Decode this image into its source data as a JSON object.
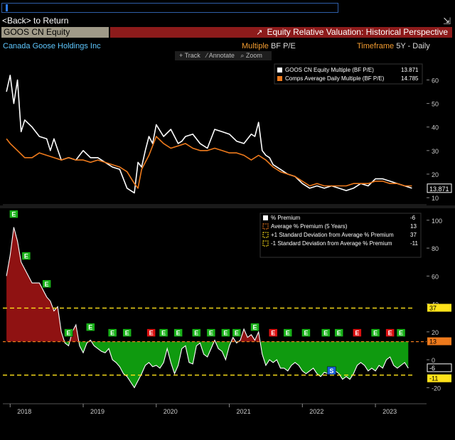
{
  "header": {
    "back_label": "<Back> to Return",
    "ticker": "GOOS CN Equity",
    "title": "Equity Relative Valuation: Historical Perspective",
    "company": "Canada Goose Holdings Inc",
    "multiple_label": "Multiple",
    "multiple_value": "BF P/E",
    "timeframe_label": "Timeframe",
    "timeframe_value": "5Y - Daily",
    "tools": [
      "+ Track",
      "⁄ Annotate",
      "⌕ Zoom"
    ]
  },
  "colors": {
    "equity": "#ffffff",
    "comps": "#ee7a1c",
    "premium_fill_pos": "#8f1212",
    "premium_fill_neg": "#0f9a0f",
    "avg": "#ee7a1c",
    "stdev": "#ffe21a",
    "title_bar": "#8d1b1b",
    "company": "#5fc8ff"
  },
  "chart_data": [
    {
      "type": "line",
      "title": "",
      "legend_position": "top-right",
      "x_unit": "year",
      "series": [
        {
          "name": "GOOS CN Equity Multiple (BF P/E)",
          "last": "13.871",
          "x": [
            2017.95,
            2018.0,
            2018.05,
            2018.1,
            2018.15,
            2018.2,
            2018.3,
            2018.4,
            2018.5,
            2018.55,
            2018.6,
            2018.7,
            2018.8,
            2018.9,
            2019.0,
            2019.1,
            2019.2,
            2019.3,
            2019.4,
            2019.5,
            2019.6,
            2019.7,
            2019.75,
            2019.8,
            2019.85,
            2019.9,
            2019.95,
            2020.0,
            2020.1,
            2020.2,
            2020.3,
            2020.35,
            2020.4,
            2020.5,
            2020.6,
            2020.7,
            2020.8,
            2020.9,
            2021.0,
            2021.1,
            2021.2,
            2021.3,
            2021.35,
            2021.4,
            2021.45,
            2021.5,
            2021.55,
            2021.6,
            2021.7,
            2021.8,
            2021.9,
            2022.0,
            2022.1,
            2022.2,
            2022.3,
            2022.4,
            2022.5,
            2022.6,
            2022.7,
            2022.8,
            2022.9,
            2023.0,
            2023.1,
            2023.2,
            2023.3,
            2023.4,
            2023.5
          ],
          "y": [
            55,
            62,
            50,
            60,
            38,
            43,
            40,
            36,
            35,
            30,
            35,
            26,
            27,
            26,
            30,
            27,
            27,
            25,
            23,
            22,
            14,
            12,
            25,
            23,
            30,
            36,
            33,
            41,
            36,
            39,
            33,
            34,
            36,
            37,
            33,
            31,
            39,
            38,
            37,
            34,
            33,
            37,
            36,
            42,
            30,
            28,
            27,
            24,
            22,
            20,
            19,
            16,
            14,
            15,
            14,
            15,
            14,
            13,
            14,
            16,
            15,
            18,
            18,
            17,
            16,
            15,
            14
          ]
        },
        {
          "name": "Comps Average Daily Multiple (BF P/E)",
          "last": "14.785",
          "x": [
            2017.95,
            2018.0,
            2018.1,
            2018.2,
            2018.3,
            2018.4,
            2018.5,
            2018.6,
            2018.7,
            2018.8,
            2018.9,
            2019.0,
            2019.1,
            2019.2,
            2019.3,
            2019.4,
            2019.5,
            2019.6,
            2019.7,
            2019.75,
            2019.8,
            2019.9,
            2020.0,
            2020.1,
            2020.2,
            2020.3,
            2020.4,
            2020.5,
            2020.6,
            2020.7,
            2020.8,
            2020.9,
            2021.0,
            2021.1,
            2021.2,
            2021.3,
            2021.4,
            2021.5,
            2021.6,
            2021.7,
            2021.8,
            2021.9,
            2022.0,
            2022.1,
            2022.2,
            2022.3,
            2022.4,
            2022.5,
            2022.6,
            2022.7,
            2022.8,
            2022.9,
            2023.0,
            2023.1,
            2023.2,
            2023.3,
            2023.4,
            2023.5
          ],
          "y": [
            35,
            33,
            30,
            27,
            27,
            29,
            28,
            27,
            26,
            27,
            26,
            26,
            25,
            26,
            25,
            24,
            23,
            21,
            16,
            14,
            22,
            28,
            36,
            33,
            31,
            32,
            33,
            31,
            30,
            30,
            31,
            30,
            29,
            29,
            28,
            26,
            28,
            26,
            23,
            21,
            20,
            19,
            17,
            15,
            16,
            15,
            15,
            15,
            15,
            16,
            16,
            16,
            17,
            17,
            16,
            16,
            15,
            15
          ]
        }
      ],
      "y_ticks": [
        10,
        20,
        30,
        40,
        50,
        60
      ],
      "ylim": [
        7,
        68
      ],
      "y_last_labels": [
        "13.871"
      ]
    },
    {
      "type": "area",
      "title": "",
      "legend_position": "top-right",
      "x_unit": "year",
      "x_ticks": [
        "2018",
        "2019",
        "2020",
        "2021",
        "2022",
        "2023"
      ],
      "series": [
        {
          "name": "% Premium",
          "last": "-6",
          "x": [
            2017.95,
            2018.0,
            2018.05,
            2018.1,
            2018.15,
            2018.2,
            2018.3,
            2018.4,
            2018.5,
            2018.55,
            2018.6,
            2018.65,
            2018.7,
            2018.75,
            2018.8,
            2018.85,
            2018.9,
            2018.95,
            2019.0,
            2019.05,
            2019.1,
            2019.15,
            2019.2,
            2019.25,
            2019.3,
            2019.35,
            2019.4,
            2019.45,
            2019.5,
            2019.55,
            2019.6,
            2019.65,
            2019.7,
            2019.75,
            2019.8,
            2019.85,
            2019.9,
            2019.95,
            2020.0,
            2020.05,
            2020.1,
            2020.15,
            2020.2,
            2020.25,
            2020.3,
            2020.35,
            2020.4,
            2020.45,
            2020.5,
            2020.55,
            2020.6,
            2020.65,
            2020.7,
            2020.75,
            2020.8,
            2020.85,
            2020.9,
            2020.95,
            2021.0,
            2021.05,
            2021.1,
            2021.15,
            2021.2,
            2021.25,
            2021.3,
            2021.35,
            2021.4,
            2021.45,
            2021.5,
            2021.55,
            2021.6,
            2021.65,
            2021.7,
            2021.75,
            2021.8,
            2021.85,
            2021.9,
            2021.95,
            2022.0,
            2022.05,
            2022.1,
            2022.15,
            2022.2,
            2022.25,
            2022.3,
            2022.35,
            2022.4,
            2022.45,
            2022.5,
            2022.55,
            2022.6,
            2022.65,
            2022.7,
            2022.75,
            2022.8,
            2022.85,
            2022.9,
            2022.95,
            2023.0,
            2023.05,
            2023.1,
            2023.15,
            2023.2,
            2023.25,
            2023.3,
            2023.35,
            2023.4,
            2023.45
          ],
          "y": [
            60,
            75,
            95,
            85,
            70,
            65,
            55,
            55,
            45,
            42,
            35,
            38,
            20,
            12,
            10,
            20,
            25,
            10,
            5,
            12,
            14,
            10,
            8,
            6,
            5,
            8,
            0,
            -2,
            -5,
            -10,
            -12,
            -16,
            -20,
            -15,
            -10,
            -4,
            -2,
            -5,
            -4,
            -6,
            -2,
            8,
            -2,
            -10,
            -4,
            8,
            10,
            -2,
            -3,
            10,
            12,
            4,
            2,
            8,
            14,
            8,
            6,
            0,
            10,
            16,
            12,
            14,
            22,
            16,
            18,
            14,
            20,
            4,
            -4,
            0,
            -2,
            0,
            -6,
            -6,
            -8,
            -4,
            -2,
            -4,
            -8,
            -10,
            -8,
            -6,
            -10,
            -12,
            -9,
            -10,
            -6,
            -8,
            -10,
            -14,
            -12,
            -14,
            -10,
            -4,
            -2,
            -4,
            -8,
            -6,
            -8,
            -4,
            -6,
            0,
            2,
            -4,
            -6,
            -4,
            -2,
            -6
          ]
        },
        {
          "name": "Average % Premium (5 Years)",
          "value": 13,
          "last": "13"
        },
        {
          "name": "+1 Standard Deviation from Average % Premium",
          "value": 37,
          "last": "37"
        },
        {
          "name": "-1 Standard Deviation from Average % Premium",
          "value": -11,
          "last": "-11"
        }
      ],
      "y_ticks": [
        -20,
        0,
        20,
        40,
        60,
        80,
        100
      ],
      "ylim": [
        -30,
        105
      ],
      "y_last_labels": [
        "37",
        "13",
        "-6",
        "-11"
      ],
      "event_markers": [
        {
          "x": 2018.05,
          "label": "E",
          "kind": "earnings"
        },
        {
          "x": 2018.22,
          "label": "E",
          "kind": "earnings"
        },
        {
          "x": 2018.5,
          "label": "E",
          "kind": "earnings"
        },
        {
          "x": 2018.8,
          "label": "E",
          "kind": "earnings"
        },
        {
          "x": 2019.1,
          "label": "E",
          "kind": "earnings"
        },
        {
          "x": 2019.4,
          "label": "E",
          "kind": "earnings"
        },
        {
          "x": 2019.6,
          "label": "E",
          "kind": "earnings"
        },
        {
          "x": 2019.93,
          "label": "E",
          "kind": "earnings-neg"
        },
        {
          "x": 2020.1,
          "label": "E",
          "kind": "earnings"
        },
        {
          "x": 2020.3,
          "label": "E",
          "kind": "earnings"
        },
        {
          "x": 2020.55,
          "label": "E",
          "kind": "earnings"
        },
        {
          "x": 2020.75,
          "label": "E",
          "kind": "earnings"
        },
        {
          "x": 2020.95,
          "label": "E",
          "kind": "earnings"
        },
        {
          "x": 2021.1,
          "label": "E",
          "kind": "earnings"
        },
        {
          "x": 2021.35,
          "label": "E",
          "kind": "earnings"
        },
        {
          "x": 2021.6,
          "label": "E",
          "kind": "earnings-neg"
        },
        {
          "x": 2021.8,
          "label": "E",
          "kind": "earnings"
        },
        {
          "x": 2022.05,
          "label": "E",
          "kind": "earnings"
        },
        {
          "x": 2022.32,
          "label": "E",
          "kind": "earnings"
        },
        {
          "x": 2022.5,
          "label": "E",
          "kind": "earnings"
        },
        {
          "x": 2022.75,
          "label": "E",
          "kind": "earnings-neg"
        },
        {
          "x": 2023.0,
          "label": "E",
          "kind": "earnings"
        },
        {
          "x": 2023.2,
          "label": "E",
          "kind": "earnings-neg"
        },
        {
          "x": 2023.35,
          "label": "E",
          "kind": "earnings"
        },
        {
          "x": 2022.4,
          "label": "S",
          "kind": "split"
        }
      ]
    }
  ]
}
